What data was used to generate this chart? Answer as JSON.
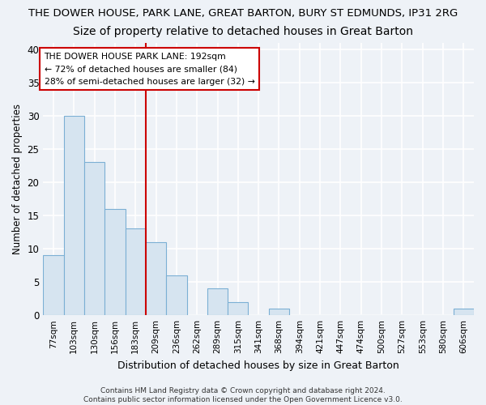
{
  "title1": "THE DOWER HOUSE, PARK LANE, GREAT BARTON, BURY ST EDMUNDS, IP31 2RG",
  "title2": "Size of property relative to detached houses in Great Barton",
  "xlabel": "Distribution of detached houses by size in Great Barton",
  "ylabel": "Number of detached properties",
  "categories": [
    "77sqm",
    "103sqm",
    "130sqm",
    "156sqm",
    "183sqm",
    "209sqm",
    "236sqm",
    "262sqm",
    "289sqm",
    "315sqm",
    "341sqm",
    "368sqm",
    "394sqm",
    "421sqm",
    "447sqm",
    "474sqm",
    "500sqm",
    "527sqm",
    "553sqm",
    "580sqm",
    "606sqm"
  ],
  "values": [
    9,
    30,
    23,
    16,
    13,
    11,
    6,
    0,
    4,
    2,
    0,
    1,
    0,
    0,
    0,
    0,
    0,
    0,
    0,
    0,
    1
  ],
  "bar_color": "#d6e4f0",
  "bar_edgecolor": "#7bafd4",
  "vline_x_index": 4,
  "vline_color": "#cc0000",
  "annotation_text": "THE DOWER HOUSE PARK LANE: 192sqm\n← 72% of detached houses are smaller (84)\n28% of semi-detached houses are larger (32) →",
  "annotation_box_color": "#ffffff",
  "annotation_box_edgecolor": "#cc0000",
  "ylim": [
    0,
    41
  ],
  "yticks": [
    0,
    5,
    10,
    15,
    20,
    25,
    30,
    35,
    40
  ],
  "footer": "Contains HM Land Registry data © Crown copyright and database right 2024.\nContains public sector information licensed under the Open Government Licence v3.0.",
  "background_color": "#eef2f7",
  "grid_color": "#ffffff",
  "title1_fontsize": 9.5,
  "title2_fontsize": 10,
  "bar_linewidth": 0.8
}
